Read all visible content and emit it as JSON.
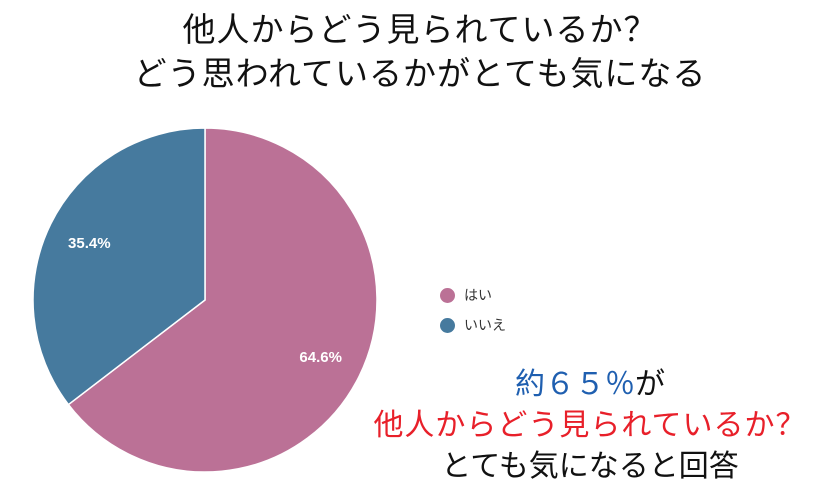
{
  "header": {
    "title_line1": "他人からどう見られているか？",
    "title_line2": "どう思われているかがとても気になる"
  },
  "chart_data": {
    "type": "pie",
    "categories": [
      "はい",
      "いいえ"
    ],
    "values": [
      64.6,
      35.4
    ],
    "value_labels": [
      "64.6%",
      "35.4%"
    ],
    "colors": [
      "#bb7196",
      "#467a9e"
    ],
    "legend_position": "right"
  },
  "caption": {
    "line1_number": "約６５％",
    "line1_particle": "が",
    "line2": "他人からどう見られているか？",
    "line3": "とても気になると回答"
  }
}
